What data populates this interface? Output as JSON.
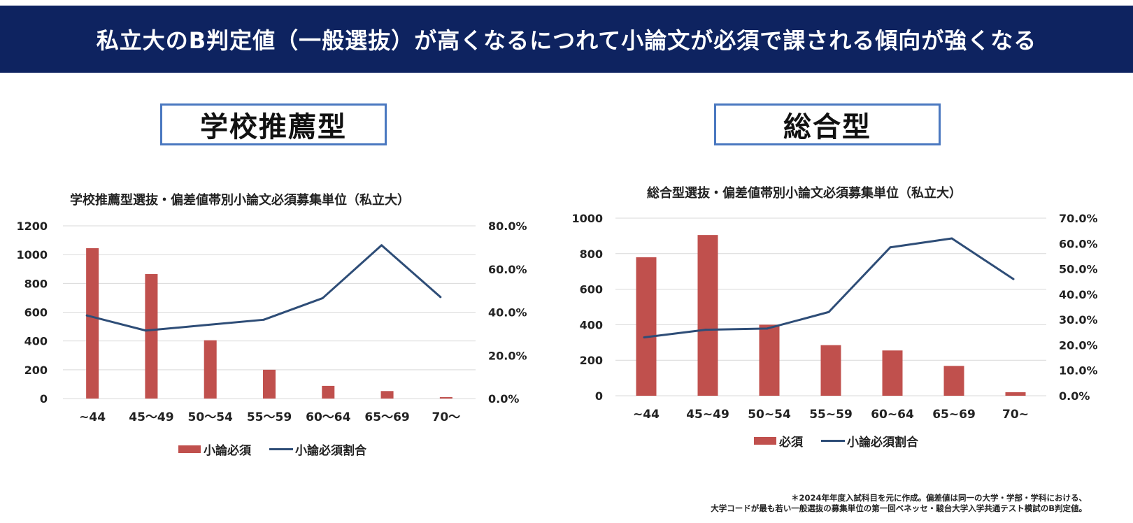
{
  "header": {
    "title": "私立大のB判定値（一般選抜）が高くなるにつれて小論文が必須で課される傾向が強くなる"
  },
  "sections": {
    "left": "学校推薦型",
    "right": "総合型"
  },
  "footnote": {
    "line1": "＊2024年年度入試科目を元に作成。偏差値は同一の大学・学部・学科における、",
    "line2": "大学コードが最も若い一般選抜の募集単位の第一回ベネッセ・駿台大学入学共通テスト模試のB判定値。"
  },
  "colors": {
    "bar": "#c0504d",
    "line": "#2e4d77",
    "grid": "#d9d9d9",
    "header_bg": "#0e2360",
    "box_border": "#4a78c0"
  },
  "chart_data": [
    {
      "type": "bar",
      "title": "学校推薦型選抜・偏差値帯別小論文必須募集単位（私立大）",
      "categories": [
        "~44",
        "45～49",
        "50～54",
        "55～59",
        "60～64",
        "65～69",
        "70～"
      ],
      "series": [
        {
          "name": "小論必須",
          "type": "bar",
          "axis": "left",
          "values": [
            1045,
            865,
            405,
            200,
            88,
            52,
            10
          ]
        },
        {
          "name": "小論必須割合",
          "type": "line",
          "axis": "right",
          "values": [
            38.5,
            31.5,
            34.0,
            36.5,
            46.5,
            71.0,
            47.0
          ]
        }
      ],
      "y_left": {
        "range": [
          0,
          1200
        ],
        "ticks": [
          "0",
          "200",
          "400",
          "600",
          "800",
          "1000",
          "1200"
        ]
      },
      "y_right": {
        "range": [
          0,
          80
        ],
        "ticks": [
          "0.0%",
          "20.0%",
          "40.0%",
          "60.0%",
          "80.0%"
        ]
      },
      "grid": true,
      "legend": "bottom"
    },
    {
      "type": "bar",
      "title": "総合型選抜・偏差値帯別小論文必須募集単位（私立大）",
      "categories": [
        "~44",
        "45~49",
        "50~54",
        "55~59",
        "60~64",
        "65~69",
        "70~"
      ],
      "series": [
        {
          "name": "必須",
          "type": "bar",
          "axis": "left",
          "values": [
            780,
            905,
            400,
            285,
            255,
            168,
            20
          ]
        },
        {
          "name": "小論必須割合",
          "type": "line",
          "axis": "right",
          "values": [
            23.0,
            26.0,
            26.5,
            33.0,
            58.5,
            62.0,
            46.0
          ]
        }
      ],
      "y_left": {
        "range": [
          0,
          1000
        ],
        "ticks": [
          "0",
          "200",
          "400",
          "600",
          "800",
          "1000"
        ]
      },
      "y_right": {
        "range": [
          0,
          70
        ],
        "ticks": [
          "0.0%",
          "10.0%",
          "20.0%",
          "30.0%",
          "40.0%",
          "50.0%",
          "60.0%",
          "70.0%"
        ]
      },
      "grid": true,
      "legend": "bottom"
    }
  ]
}
